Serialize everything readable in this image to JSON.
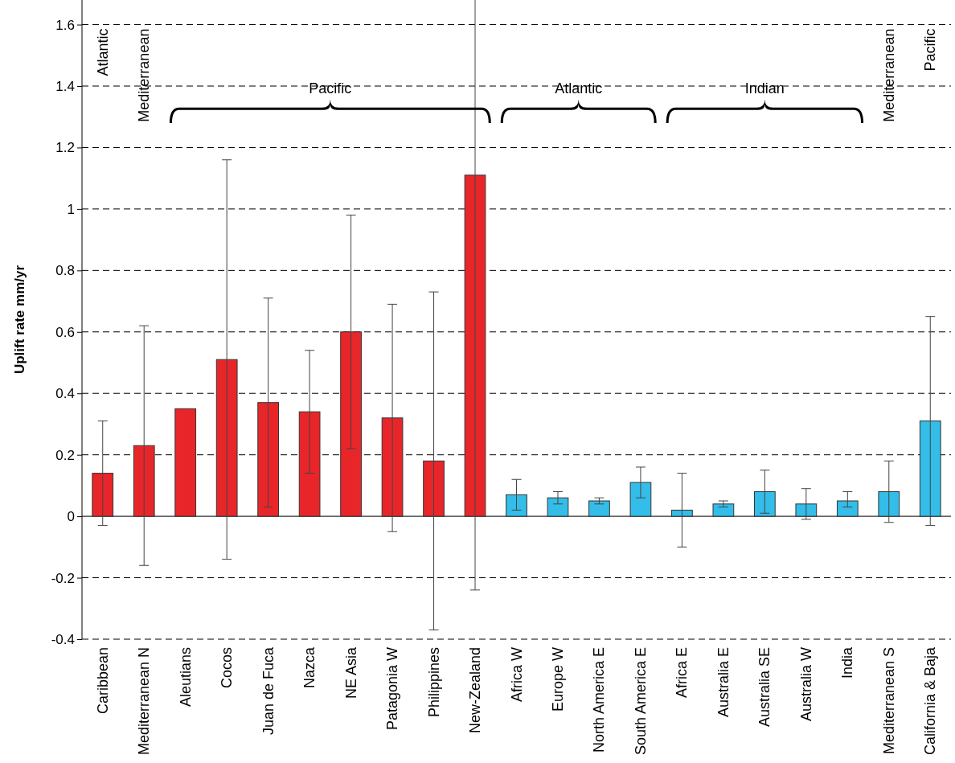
{
  "chart_data": {
    "type": "bar",
    "ylabel": "Uplift rate mm/yr",
    "categories": [
      "Caribbean",
      "Mediterranean N",
      "Aleutians",
      "Cocos",
      "Juan de Fuca",
      "Nazca",
      "NE Asia",
      "Patagonia W",
      "Philippines",
      "New-Zealand",
      "Africa W",
      "Europe W",
      "North America E",
      "South America E",
      "Africa E",
      "Australia E",
      "Australia SE",
      "Australia W",
      "India",
      "Mediterranean S",
      "California & Baja"
    ],
    "values": [
      0.14,
      0.23,
      0.35,
      0.51,
      0.37,
      0.34,
      0.6,
      0.32,
      0.18,
      1.11,
      0.07,
      0.06,
      0.05,
      0.11,
      0.02,
      0.04,
      0.08,
      0.04,
      0.05,
      0.08,
      0.31
    ],
    "errors": [
      [
        -0.03,
        0.31
      ],
      [
        -0.16,
        0.62
      ],
      null,
      [
        -0.14,
        1.16
      ],
      [
        0.03,
        0.71
      ],
      [
        0.14,
        0.54
      ],
      [
        0.22,
        0.98
      ],
      [
        -0.05,
        0.69
      ],
      [
        -0.37,
        0.73
      ],
      [
        -0.24,
        1.68
      ],
      [
        0.02,
        0.12
      ],
      [
        0.04,
        0.08
      ],
      [
        0.04,
        0.06
      ],
      [
        0.06,
        0.16
      ],
      [
        -0.1,
        0.14
      ],
      [
        0.03,
        0.05
      ],
      [
        0.01,
        0.15
      ],
      [
        -0.01,
        0.09
      ],
      [
        0.03,
        0.08
      ],
      [
        -0.02,
        0.18
      ],
      [
        -0.03,
        0.65
      ]
    ],
    "colors": [
      "#e8262a",
      "#e8262a",
      "#e8262a",
      "#e8262a",
      "#e8262a",
      "#e8262a",
      "#e8262a",
      "#e8262a",
      "#e8262a",
      "#e8262a",
      "#33bde8",
      "#33bde8",
      "#33bde8",
      "#33bde8",
      "#33bde8",
      "#33bde8",
      "#33bde8",
      "#33bde8",
      "#33bde8",
      "#33bde8",
      "#33bde8"
    ],
    "ylim": [
      -0.4,
      1.68
    ],
    "yticks": [
      -0.4,
      -0.2,
      0,
      0.2,
      0.4,
      0.6,
      0.8,
      1,
      1.2,
      1.4,
      1.6
    ],
    "grid": "y",
    "annotations": [
      "Atlantic",
      "Mediterranean",
      "Pacific",
      "Atlantic",
      "Indian",
      "Mediterranean",
      "Pacific"
    ]
  }
}
